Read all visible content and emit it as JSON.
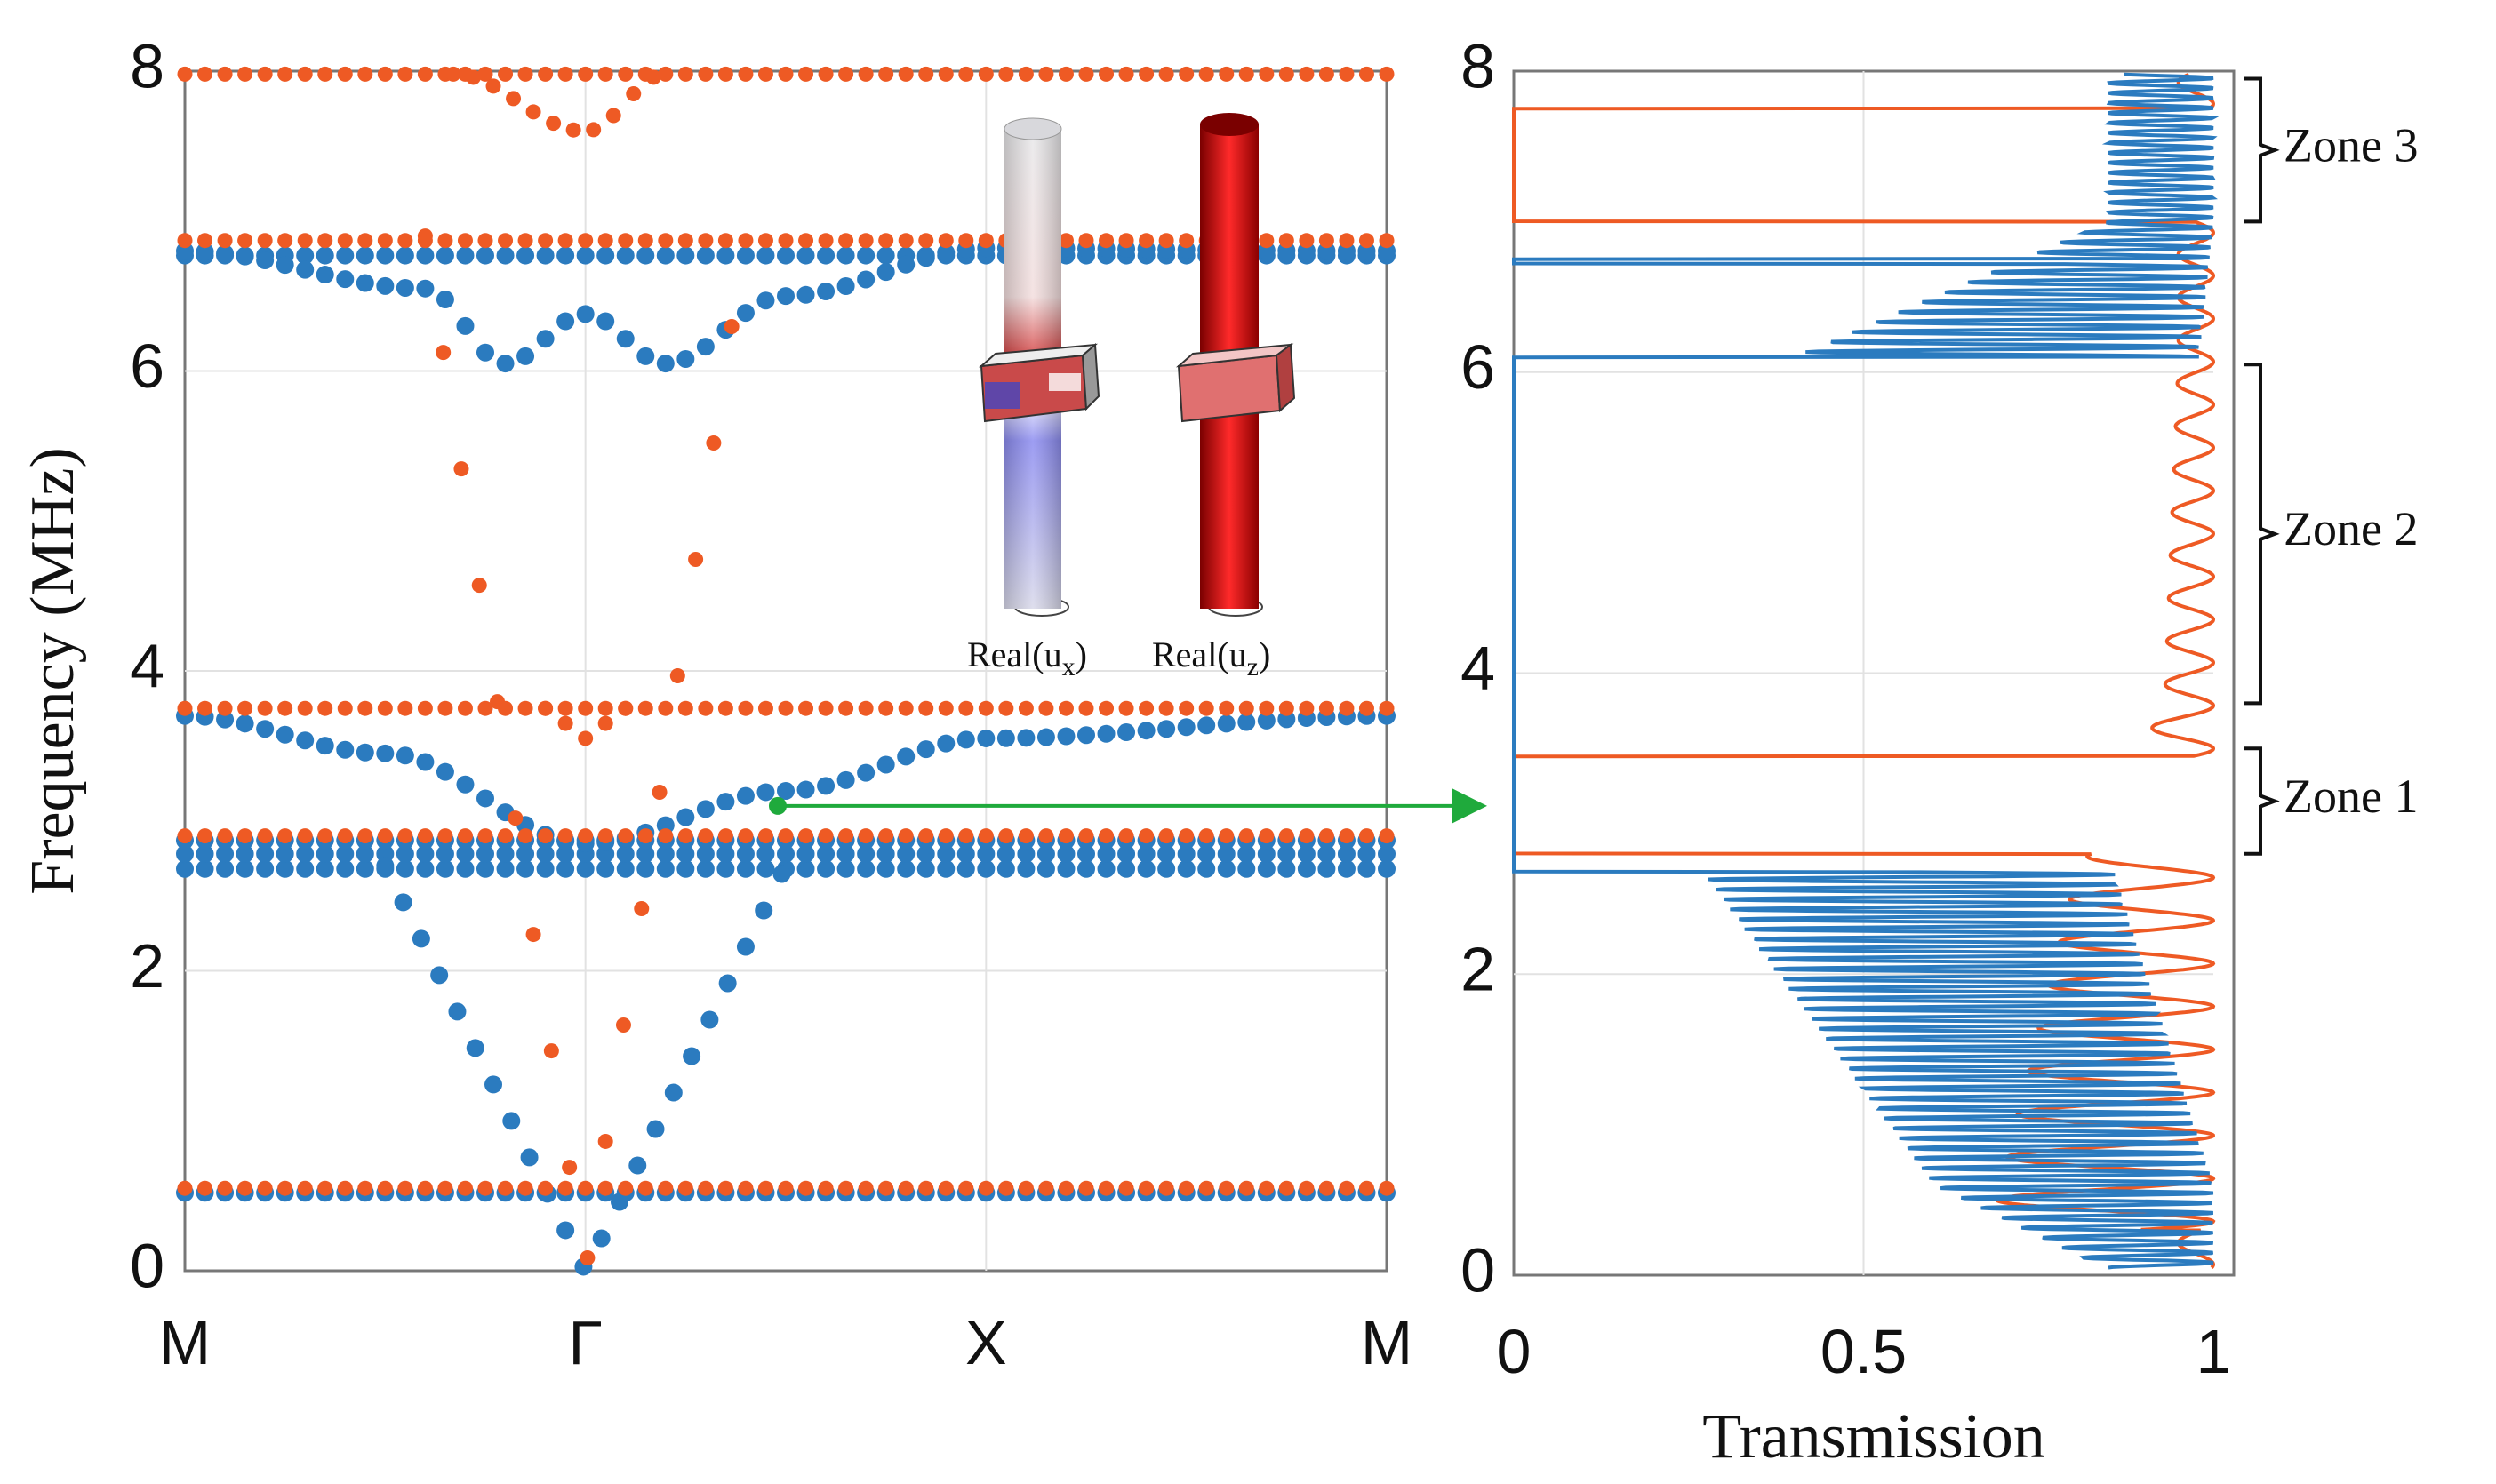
{
  "chart_data": [
    {
      "type": "scatter",
      "title": "",
      "xlabel": "",
      "ylabel": "Frequency (MHz)",
      "ylim": [
        0,
        8
      ],
      "yticks": [
        "0",
        "2",
        "4",
        "6",
        "8"
      ],
      "xticks": [
        "M",
        "Γ",
        "X",
        "M"
      ],
      "colors": {
        "blue": "#2b7bbf",
        "orange": "#ee5a24"
      },
      "series": [
        {
          "name": "blue bands",
          "color": "#2b7bbf",
          "flat_bands_MHz": [
            0.52,
            2.68,
            2.78,
            2.87,
            6.77
          ],
          "curved_bands": [
            {
              "label": "band near 3.7",
              "points": [
                [
                  0,
                  3.7
                ],
                [
                  0.5,
                  3.45
                ],
                [
                  1,
                  2.85
                ],
                [
                  1.5,
                  3.2
                ],
                [
                  2,
                  3.55
                ],
                [
                  3,
                  3.7
                ]
              ]
            },
            {
              "label": "band near 6.1",
              "points": [
                [
                  0,
                  6.8
                ],
                [
                  0.6,
                  6.55
                ],
                [
                  0.8,
                  6.05
                ],
                [
                  1,
                  6.38
                ],
                [
                  1.2,
                  6.05
                ],
                [
                  1.5,
                  6.5
                ],
                [
                  2,
                  6.82
                ],
                [
                  3,
                  6.8
                ]
              ]
            },
            {
              "label": "acoustic cone",
              "points": [
                [
                  0.5,
                  2.7
                ],
                [
                  1,
                  0.0
                ],
                [
                  1.5,
                  2.7
                ]
              ]
            }
          ]
        },
        {
          "name": "orange bands",
          "color": "#ee5a24",
          "flat_bands_MHz": [
            0.55,
            2.9,
            3.75,
            6.87,
            7.98
          ],
          "curved_bands": [
            {
              "label": "band near 7.6",
              "points": [
                [
                  0.67,
                  7.98
                ],
                [
                  1,
                  7.6
                ],
                [
                  1.2,
                  7.98
                ]
              ]
            },
            {
              "label": "band near 3.5",
              "points": [
                [
                  0.9,
                  3.75
                ],
                [
                  1,
                  3.55
                ],
                [
                  1.1,
                  3.75
                ]
              ]
            },
            {
              "label": "steep cone",
              "points": [
                [
                  0.6,
                  6.9
                ],
                [
                  1,
                  0.0
                ],
                [
                  1.4,
                  6.9
                ]
              ]
            }
          ]
        }
      ],
      "annotations": {
        "inset_labels": [
          "Real(u",
          "x",
          ")",
          "Real(u",
          "z",
          ")"
        ]
      }
    },
    {
      "type": "line",
      "xlabel": "Transmission",
      "ylabel": "",
      "xlim": [
        0,
        1
      ],
      "ylim": [
        0,
        8
      ],
      "xticks": [
        "0",
        "0.5",
        "1"
      ],
      "yticks": [
        "0",
        "2",
        "4",
        "6",
        "8"
      ],
      "series": [
        {
          "name": "blue transmission",
          "color": "#2b7bbf",
          "gaps_MHz": [
            [
              2.68,
              3.48
            ],
            [
              3.48,
              6.1
            ],
            [
              6.72,
              6.75
            ]
          ],
          "oscillation_band": [
            [
              0.1,
              0.82,
              1.0
            ],
            [
              0.6,
              0.6,
              1.0
            ],
            [
              2.8,
              0.25,
              0.85
            ],
            [
              6.1,
              0.4,
              0.98
            ],
            [
              7.0,
              0.85,
              1.0
            ]
          ]
        },
        {
          "name": "orange transmission",
          "color": "#ee5a24",
          "gaps_MHz": [
            [
              7.0,
              7.75
            ],
            [
              2.8,
              3.45
            ]
          ],
          "oscillation_band": [
            [
              0.3,
              0.68,
              1.0
            ],
            [
              2.6,
              0.8,
              1.0
            ],
            [
              3.8,
              0.93,
              1.0
            ],
            [
              6.1,
              0.95,
              1.0
            ]
          ]
        }
      ],
      "annotations": {
        "zones": [
          {
            "label": "Zone 1",
            "range_MHz": [
              2.8,
              3.5
            ]
          },
          {
            "label": "Zone 2",
            "range_MHz": [
              3.8,
              6.05
            ]
          },
          {
            "label": "Zone 3",
            "range_MHz": [
              7.0,
              7.95
            ]
          }
        ],
        "arrow_frequency_MHz": 3.1
      }
    }
  ]
}
